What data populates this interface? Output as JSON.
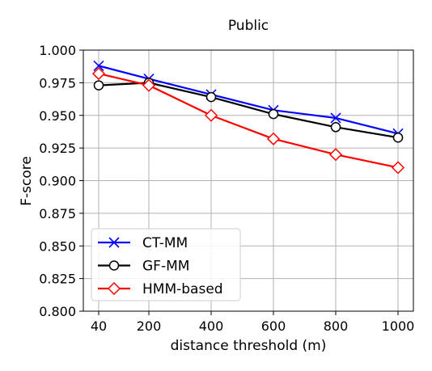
{
  "chart_data": {
    "type": "line",
    "title": "Public",
    "xlabel": "distance threshold (m)",
    "ylabel": "F-score",
    "categories": [
      "40",
      "200",
      "400",
      "600",
      "800",
      "1000"
    ],
    "ylim": [
      0.8,
      1.0
    ],
    "yticks": [
      "0.800",
      "0.825",
      "0.850",
      "0.875",
      "0.900",
      "0.925",
      "0.950",
      "0.975",
      "1.000"
    ],
    "grid": true,
    "legend_position": "bottom-left",
    "series": [
      {
        "name": "CT-MM",
        "color": "#0000ff",
        "marker": "x",
        "values": [
          0.988,
          0.978,
          0.966,
          0.954,
          0.948,
          0.936
        ]
      },
      {
        "name": "GF-MM",
        "color": "#000000",
        "marker": "circle",
        "values": [
          0.973,
          0.975,
          0.964,
          0.951,
          0.941,
          0.933
        ]
      },
      {
        "name": "HMM-based",
        "color": "#ff0000",
        "marker": "diamond",
        "values": [
          0.982,
          0.973,
          0.95,
          0.932,
          0.92,
          0.91
        ]
      }
    ]
  }
}
